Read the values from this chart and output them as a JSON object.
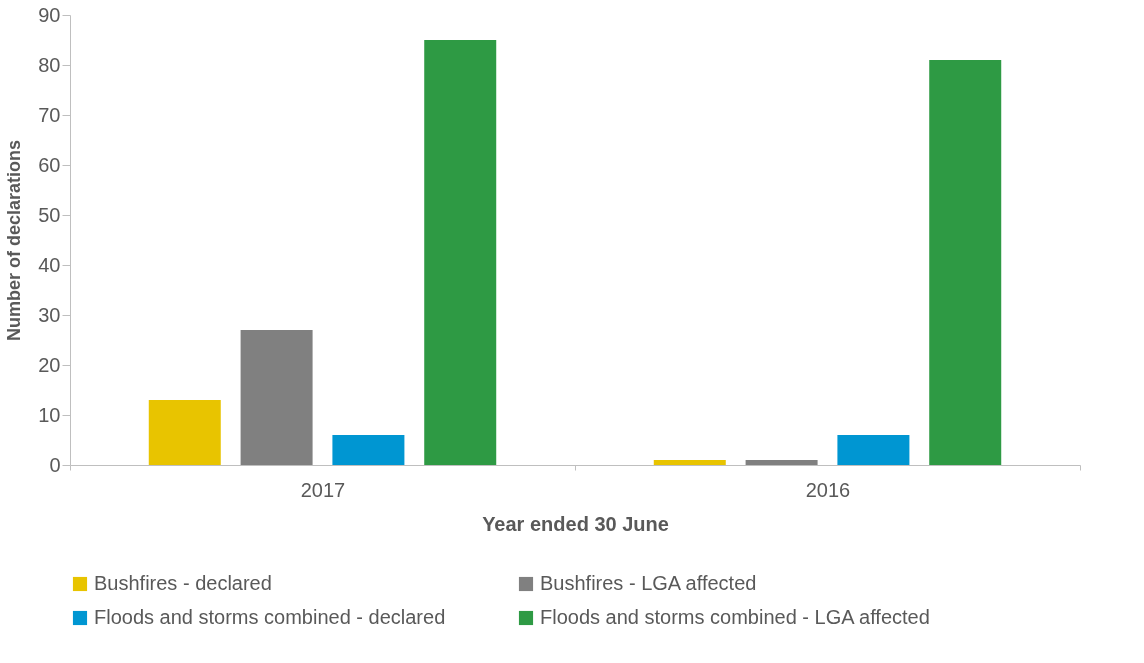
{
  "chart_data": {
    "type": "bar",
    "xlabel": "Year ended 30 June",
    "ylabel": "Number of declarations",
    "categories": [
      "2017",
      "2016"
    ],
    "series": [
      {
        "name": "Bushfires - declared",
        "color": "#e8c400",
        "values": [
          13,
          1
        ]
      },
      {
        "name": "Bushfires - LGA affected",
        "color": "#808080",
        "values": [
          27,
          1
        ]
      },
      {
        "name": "Floods and storms combined - declared",
        "color": "#0096d2",
        "values": [
          6,
          6
        ]
      },
      {
        "name": "Floods and storms combined - LGA affected",
        "color": "#2e9a44",
        "values": [
          85,
          81
        ]
      }
    ],
    "ylim": [
      0,
      90
    ],
    "yticks": [
      0,
      10,
      20,
      30,
      40,
      50,
      60,
      70,
      80,
      90
    ],
    "grid": false,
    "legend": "bottom"
  }
}
